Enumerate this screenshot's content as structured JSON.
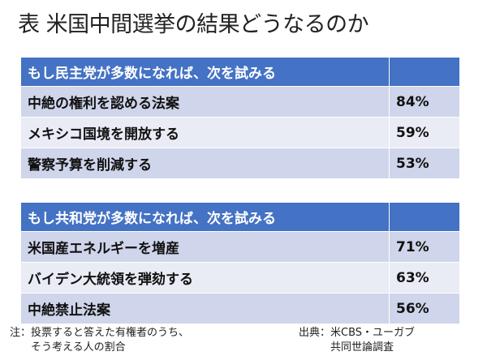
{
  "title": "表 米国中間選挙の結果どうなるのか",
  "tables": [
    {
      "header": "もし民主党が多数になれば、次を試みる",
      "rows": [
        {
          "label": "中絶の権利を認める法案",
          "value": "84%"
        },
        {
          "label": "メキシコ国境を開放する",
          "value": "59%"
        },
        {
          "label": "警察予算を削減する",
          "value": "53%"
        }
      ]
    },
    {
      "header": "もし共和党が多数になれば、次を試みる",
      "rows": [
        {
          "label": "米国産エネルギーを増産",
          "value": "71%"
        },
        {
          "label": "バイデン大統領を弾劾する",
          "value": "63%"
        },
        {
          "label": "中絶禁止法案",
          "value": "56%"
        }
      ]
    }
  ],
  "note": "注：投票すると答えた有権者のうち、\n　　そう考える人の割合",
  "source": "出典：米CBS・ユーガブ\n　　　共同世論調査",
  "colors": {
    "header": "#4472c4",
    "row_dark": "#cfd5ea",
    "row_light": "#e9ebf5"
  }
}
